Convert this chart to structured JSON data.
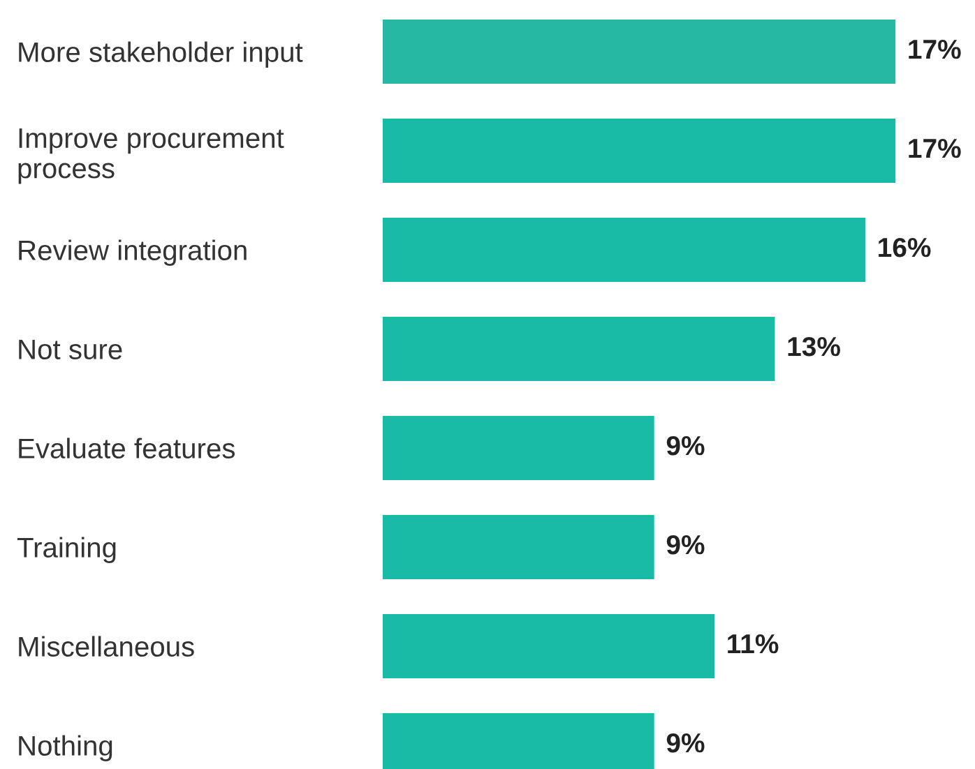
{
  "chart_data": {
    "type": "bar",
    "orientation": "horizontal",
    "categories": [
      "More stakeholder input",
      "Improve procurement\nprocess",
      "Review integration",
      "Not sure",
      "Evaluate features",
      "Training",
      "Miscellaneous",
      "Nothing"
    ],
    "values": [
      17,
      17,
      16,
      13,
      9,
      9,
      11,
      9
    ],
    "value_labels": [
      "17%",
      "17%",
      "16%",
      "13%",
      "9%",
      "9%",
      "11%",
      "9%"
    ],
    "colors": [
      "#27b8a4",
      "#1abba6",
      "#1abba6",
      "#1abba6",
      "#1abba6",
      "#1abba6",
      "#1abba6",
      "#1abba6"
    ],
    "grid": false,
    "tick_labels": "y"
  }
}
